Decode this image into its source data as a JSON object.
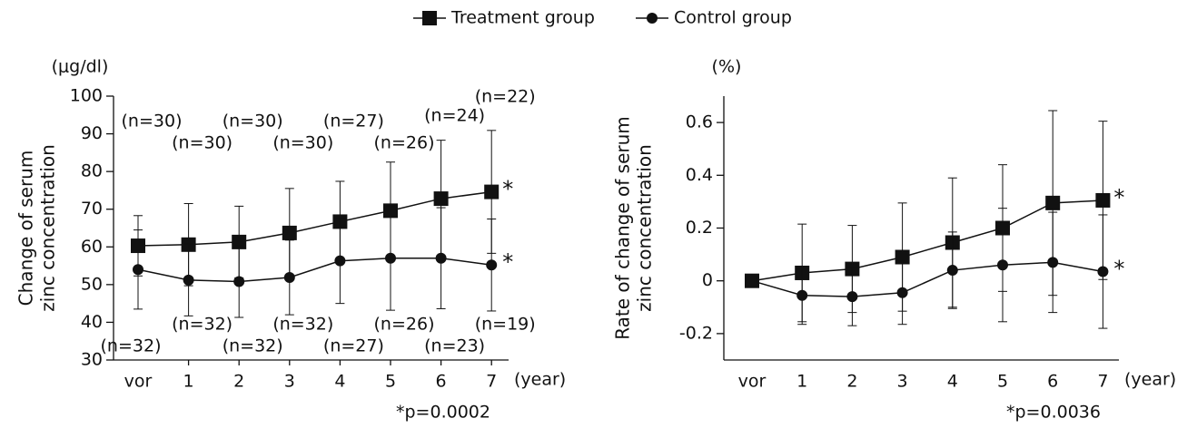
{
  "chart_data": [
    {
      "type": "line",
      "y_unit": "(μg/dl)",
      "y_label": [
        "Change of serum",
        "zinc concentration"
      ],
      "x_label": "(year)",
      "annotation": "*p=0.0002",
      "sig_marks": [
        "*",
        "*"
      ],
      "categories": [
        "vor",
        "1",
        "2",
        "3",
        "4",
        "5",
        "6",
        "7"
      ],
      "ylim": [
        30,
        100
      ],
      "yticks": [
        30,
        40,
        50,
        60,
        70,
        80,
        90,
        100
      ],
      "series": [
        {
          "name": "Treatment group",
          "marker": "square",
          "color": "#111111",
          "values": [
            60.3,
            60.6,
            61.3,
            63.7,
            66.7,
            69.6,
            72.8,
            74.6
          ],
          "errors": [
            8,
            10.9,
            9.5,
            11.8,
            10.7,
            12.9,
            15.5,
            16.3
          ],
          "n_labels": [
            "(n=30)",
            "(n=30)",
            "(n=30)",
            "(n=30)",
            "(n=27)",
            "(n=26)",
            "(n=24)",
            "(n=22)"
          ]
        },
        {
          "name": "Control group",
          "marker": "circle",
          "color": "#111111",
          "values": [
            54,
            51.2,
            50.8,
            51.9,
            56.3,
            57,
            57,
            55.2
          ],
          "errors": [
            10.5,
            9.5,
            9.5,
            9.9,
            11.3,
            13.8,
            13.4,
            12.2
          ],
          "n_labels": [
            "(n=32)",
            "(n=32)",
            "(n=32)",
            "(n=32)",
            "(n=27)",
            "(n=26)",
            "(n=23)",
            "(n=19)"
          ]
        }
      ]
    },
    {
      "type": "line",
      "y_unit": "(%)",
      "y_label": [
        "Rate of change of serum",
        "zinc concentration"
      ],
      "x_label": "(year)",
      "annotation": "*p=0.0036",
      "sig_marks": [
        "*",
        "*"
      ],
      "categories": [
        "vor",
        "1",
        "2",
        "3",
        "4",
        "5",
        "6",
        "7"
      ],
      "ylim": [
        -0.3,
        0.7
      ],
      "yticks": [
        -0.2,
        0,
        0.2,
        0.4,
        0.6
      ],
      "series": [
        {
          "marker": "square",
          "color": "#111111",
          "values": [
            0,
            0.03,
            0.045,
            0.09,
            0.145,
            0.2,
            0.295,
            0.305
          ],
          "errors": [
            0,
            0.185,
            0.165,
            0.205,
            0.245,
            0.24,
            0.35,
            0.3
          ]
        },
        {
          "marker": "circle",
          "color": "#111111",
          "values": [
            0,
            -0.055,
            -0.06,
            -0.045,
            0.04,
            0.06,
            0.07,
            0.035
          ],
          "errors": [
            0,
            0.11,
            0.11,
            0.12,
            0.145,
            0.215,
            0.19,
            0.215
          ]
        }
      ]
    }
  ]
}
